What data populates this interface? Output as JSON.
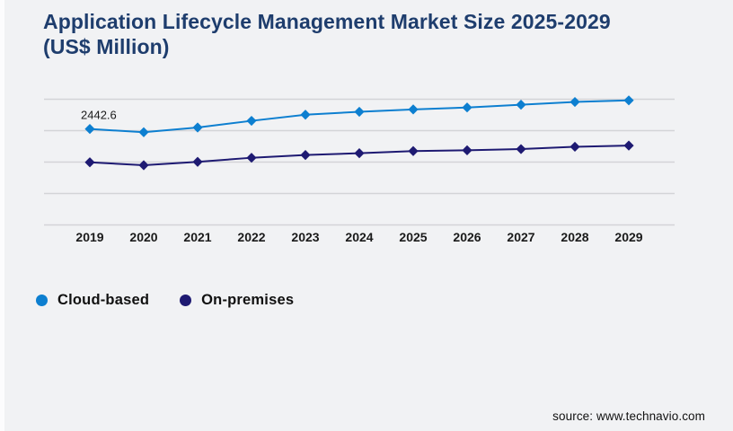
{
  "title": "Application Lifecycle Management Market Size 2025-2029 (US$ Million)",
  "source": "source: www.technavio.com",
  "colors": {
    "background": "#f1f2f4",
    "gridline": "#d3d4d7",
    "title": "#1e3d6d",
    "text": "#1a1a1a",
    "cloud_based": "#0d7fd0",
    "on_premises": "#1e1a72"
  },
  "chart_data": {
    "type": "line",
    "title": "Application Lifecycle Management Market Size 2025-2029 (US$ Million)",
    "x": [
      2019,
      2020,
      2021,
      2022,
      2023,
      2024,
      2025,
      2026,
      2027,
      2028,
      2029
    ],
    "series": [
      {
        "name": "Cloud-based",
        "color": "#0d7fd0",
        "values": [
          2442.6,
          2360,
          2480,
          2650,
          2805,
          2880,
          2940,
          2990,
          3060,
          3130,
          3170
        ]
      },
      {
        "name": "On-premises",
        "color": "#1e1a72",
        "values": [
          1595,
          1520,
          1605,
          1710,
          1780,
          1825,
          1880,
          1900,
          1930,
          1990,
          2020
        ]
      }
    ],
    "ylim": [
      0,
      3200
    ],
    "gridlines": [
      0,
      800,
      1600,
      2400,
      3200
    ],
    "y_axis_labels_visible": false,
    "grid": "horizontal",
    "marker": "diamond",
    "legend_position": "bottom-left",
    "annotation": {
      "series": "Cloud-based",
      "x": 2019,
      "text": "2442.6"
    }
  }
}
